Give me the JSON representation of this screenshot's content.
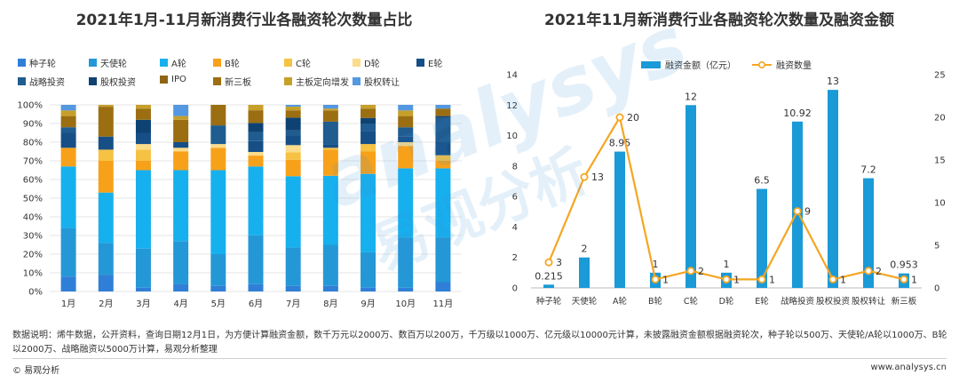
{
  "left_chart": {
    "title": "2021年1月-11月新消费行业各融资轮次数量占比",
    "chart_data": {
      "type": "bar",
      "stacked": true,
      "percent": true,
      "categories": [
        "1月",
        "2月",
        "3月",
        "4月",
        "5月",
        "6月",
        "7月",
        "8月",
        "9月",
        "10月",
        "11月"
      ],
      "y_ticks": [
        "0%",
        "10%",
        "20%",
        "30%",
        "40%",
        "50%",
        "60%",
        "70%",
        "80%",
        "90%",
        "100%"
      ],
      "ylim": [
        0,
        100
      ],
      "grid": true,
      "legend_position": "top",
      "series": [
        {
          "name": "种子轮",
          "color": "#2F7FD8",
          "values": [
            8,
            9,
            2,
            4,
            3,
            4,
            3,
            3,
            2,
            2,
            5
          ]
        },
        {
          "name": "天使轮",
          "color": "#2498D6",
          "values": [
            26,
            17,
            21,
            23,
            17,
            27,
            21,
            22,
            19,
            27,
            24
          ]
        },
        {
          "name": "A轮",
          "color": "#17B0EE",
          "values": [
            33,
            27,
            42,
            38,
            45,
            38,
            39,
            37,
            42,
            37,
            37
          ]
        },
        {
          "name": "B轮",
          "color": "#F7A11A",
          "values": [
            10,
            17,
            5,
            10,
            12,
            6,
            9,
            14,
            12,
            12,
            4
          ]
        },
        {
          "name": "C轮",
          "color": "#F6C244",
          "values": [
            0,
            6,
            6,
            0,
            0,
            0,
            4,
            1,
            4,
            0,
            3
          ]
        },
        {
          "name": "D轮",
          "color": "#FBDC8A",
          "values": [
            0,
            0,
            3,
            2,
            2,
            2,
            4,
            0,
            0,
            2,
            0
          ]
        },
        {
          "name": "E轮",
          "color": "#164F86",
          "values": [
            8,
            7,
            6,
            3,
            0,
            6,
            5,
            2,
            7,
            3,
            7
          ]
        },
        {
          "name": "战略投资",
          "color": "#1F5C8F",
          "values": [
            3,
            0,
            0,
            0,
            10,
            5,
            3,
            12,
            4,
            5,
            13
          ]
        },
        {
          "name": "股权投资",
          "color": "#0E4273",
          "values": [
            0,
            0,
            7,
            0,
            0,
            5,
            7,
            0,
            3,
            0,
            1
          ]
        },
        {
          "name": "IPO",
          "color": "#8E6514",
          "values": [
            0,
            0,
            0,
            0,
            0,
            0,
            0,
            0,
            0,
            0,
            0
          ]
        },
        {
          "name": "新三板",
          "color": "#9B6E12",
          "values": [
            6,
            16,
            6,
            12,
            11,
            7,
            4,
            6,
            5,
            6,
            4
          ]
        },
        {
          "name": "主板定向增发",
          "color": "#C7A02A",
          "values": [
            3,
            1,
            2,
            2,
            0,
            3,
            2,
            1,
            2,
            3,
            0
          ]
        },
        {
          "name": "股权转让",
          "color": "#5398E0",
          "values": [
            3,
            0,
            0,
            6,
            0,
            0,
            1,
            2,
            0,
            3,
            2
          ]
        }
      ]
    }
  },
  "right_chart": {
    "title": "2021年11月新消费行业各融资轮次数量及融资金额",
    "chart_data": {
      "type": "bar",
      "categories": [
        "种子轮",
        "天使轮",
        "A轮",
        "B轮",
        "C轮",
        "D轮",
        "E轮",
        "战略投资",
        "股权投资",
        "股权转让",
        "新三板"
      ],
      "legend_position": "top",
      "series": [
        {
          "name": "融资金额（亿元）",
          "type": "bar",
          "axis": "left",
          "color": "#1A9AD7",
          "values": [
            0.215,
            2,
            8.95,
            1,
            12,
            1,
            6.5,
            10.92,
            13,
            7.2,
            0.953
          ],
          "labels": [
            "0.215",
            "2",
            "8.95",
            "1",
            "12",
            "1",
            "6.5",
            "10.92",
            "13",
            "7.2",
            "0.953"
          ]
        },
        {
          "name": "融资数量",
          "type": "line",
          "axis": "right",
          "color": "#F5A623",
          "values": [
            3,
            13,
            20,
            1,
            2,
            1,
            1,
            9,
            1,
            2,
            1
          ],
          "labels": [
            "3",
            "13",
            "20",
            "1",
            "2",
            "1",
            "1",
            "9",
            "1",
            "2",
            "1"
          ]
        }
      ],
      "y_left": {
        "range": [
          0,
          14
        ],
        "ticks": [
          "0",
          "2",
          "4",
          "6",
          "8",
          "10",
          "12",
          "14"
        ]
      },
      "y_right": {
        "range": [
          0,
          25
        ],
        "ticks": [
          "0",
          "5",
          "10",
          "15",
          "20",
          "25"
        ]
      },
      "grid": false
    }
  },
  "watermark": {
    "latin": "analysys",
    "chinese": "易观分析"
  },
  "footnote": {
    "line1": "数据说明：烯牛数据，公开资料，查询日期12月1日，为方便计算融资金额，数千万元以2000万、数百万以200万，千万级以1000万、亿元级以10000元计算，未披露融资金额根据融资轮次，种子轮以500万、天使轮/A轮以1000万、B轮",
    "line2": "以2000万、战略融资以5000万计算，易观分析整理"
  },
  "brand": "© 易观分析",
  "site": "www.analysys.cn"
}
